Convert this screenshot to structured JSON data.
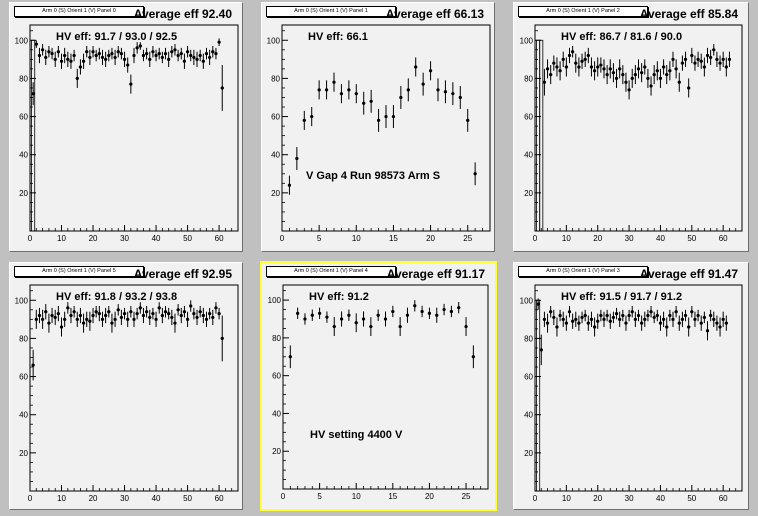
{
  "panels": [
    {
      "title": "Arm 0 (S) Orient 1 (V) Panel 0",
      "average_label": "Average eff 92.40",
      "hv_eff_label": "HV eff:   91.7 / 93.0 / 92.5",
      "annotation": "",
      "selected": false
    },
    {
      "title": "Arm 0 (S) Orient 1 (V) Panel 1",
      "average_label": "Average eff 66.13",
      "hv_eff_label": "HV eff:   66.1",
      "annotation": "V Gap 4 Run 98573 Arm S",
      "selected": false
    },
    {
      "title": "Arm 0 (S) Orient 1 (V) Panel 2",
      "average_label": "Average eff 85.84",
      "hv_eff_label": "HV eff:   86.7 / 81.6 / 90.0",
      "annotation": "",
      "selected": false
    },
    {
      "title": "Arm 0 (S) Orient 1 (V) Panel 5",
      "average_label": "Average eff 92.95",
      "hv_eff_label": "HV eff:   91.8 / 93.2 / 93.8",
      "annotation": "",
      "selected": false
    },
    {
      "title": "Arm 0 (S) Orient 1 (V) Panel 4",
      "average_label": "Average eff 91.17",
      "hv_eff_label": "HV eff:   91.2",
      "annotation": "HV setting 4400 V",
      "selected": true
    },
    {
      "title": "Arm 0 (S) Orient 1 (V) Panel 3",
      "average_label": "Average eff 91.47",
      "hv_eff_label": "HV eff:   91.5 / 91.7 / 91.2",
      "annotation": "",
      "selected": false
    }
  ],
  "chart_data": [
    {
      "type": "scatter",
      "title": "Arm 0 (S) Orient 1 (V) Panel 0",
      "xlim": [
        0,
        66
      ],
      "ylim": [
        0,
        108
      ],
      "xticks": [
        0,
        10,
        20,
        30,
        40,
        50,
        60
      ],
      "yticks": [
        20,
        40,
        60,
        80,
        100
      ],
      "x": [
        1,
        2,
        3,
        4,
        5,
        6,
        7,
        8,
        9,
        10,
        11,
        12,
        13,
        14,
        15,
        16,
        17,
        18,
        19,
        20,
        21,
        22,
        23,
        24,
        25,
        26,
        27,
        28,
        29,
        30,
        31,
        32,
        33,
        34,
        35,
        36,
        37,
        38,
        39,
        40,
        41,
        42,
        43,
        44,
        45,
        46,
        47,
        48,
        49,
        50,
        51,
        52,
        53,
        54,
        55,
        56,
        57,
        58,
        59,
        60,
        61,
        62
      ],
      "y": [
        72,
        98,
        92,
        95,
        91,
        94,
        93,
        90,
        94,
        89,
        92,
        90,
        89,
        92,
        80,
        86,
        89,
        94,
        91,
        94,
        92,
        93,
        91,
        90,
        92,
        93,
        91,
        94,
        93,
        90,
        87,
        77,
        92,
        96,
        97,
        92,
        93,
        90,
        94,
        92,
        93,
        91,
        93,
        90,
        94,
        95,
        92,
        93,
        89,
        94,
        92,
        91,
        90,
        92,
        89,
        93,
        91,
        94,
        93,
        99,
        75,
        0
      ],
      "err": [
        6,
        2,
        4,
        3,
        4,
        3,
        3,
        4,
        3,
        4,
        4,
        4,
        4,
        3,
        5,
        4,
        4,
        3,
        4,
        3,
        3,
        3,
        4,
        4,
        3,
        3,
        4,
        3,
        3,
        4,
        4,
        5,
        4,
        3,
        2,
        3,
        3,
        4,
        3,
        3,
        3,
        3,
        3,
        4,
        3,
        3,
        3,
        3,
        4,
        3,
        3,
        4,
        4,
        3,
        4,
        3,
        4,
        3,
        3,
        2,
        12,
        0
      ],
      "edge_bars": [
        1
      ]
    },
    {
      "type": "scatter",
      "title": "Arm 0 (S) Orient 1 (V) Panel 1",
      "xlim": [
        0,
        28
      ],
      "ylim": [
        0,
        108
      ],
      "xticks": [
        0,
        5,
        10,
        15,
        20,
        25
      ],
      "yticks": [
        20,
        40,
        60,
        80,
        100
      ],
      "x": [
        1,
        2,
        3,
        4,
        5,
        6,
        7,
        8,
        9,
        10,
        11,
        12,
        13,
        14,
        15,
        16,
        17,
        18,
        19,
        20,
        21,
        22,
        23,
        24,
        25,
        26
      ],
      "y": [
        24,
        38,
        58,
        60,
        74,
        74,
        78,
        72,
        74,
        72,
        67,
        68,
        58,
        60,
        60,
        70,
        74,
        86,
        77,
        84,
        74,
        73,
        72,
        70,
        58,
        30
      ],
      "err": [
        5,
        6,
        5,
        5,
        5,
        5,
        5,
        5,
        5,
        5,
        6,
        6,
        6,
        6,
        6,
        6,
        6,
        5,
        6,
        5,
        6,
        6,
        6,
        6,
        6,
        6
      ],
      "edge_bars": []
    },
    {
      "type": "scatter",
      "title": "Arm 0 (S) Orient 1 (V) Panel 2",
      "xlim": [
        0,
        66
      ],
      "ylim": [
        0,
        108
      ],
      "xticks": [
        0,
        10,
        20,
        30,
        40,
        50,
        60
      ],
      "yticks": [
        20,
        40,
        60,
        80,
        100
      ],
      "x": [
        3,
        4,
        5,
        6,
        7,
        8,
        9,
        10,
        11,
        12,
        13,
        14,
        15,
        16,
        17,
        18,
        19,
        20,
        21,
        22,
        23,
        24,
        25,
        26,
        27,
        28,
        29,
        30,
        31,
        32,
        33,
        34,
        35,
        36,
        37,
        38,
        39,
        40,
        41,
        42,
        43,
        44,
        45,
        46,
        47,
        48,
        49,
        50,
        51,
        52,
        53,
        54,
        55,
        56,
        57,
        58,
        59,
        60,
        61,
        62
      ],
      "y": [
        78,
        85,
        82,
        88,
        86,
        84,
        90,
        86,
        92,
        94,
        88,
        86,
        89,
        90,
        92,
        86,
        84,
        86,
        87,
        85,
        82,
        85,
        83,
        80,
        85,
        82,
        78,
        74,
        80,
        82,
        85,
        83,
        86,
        80,
        76,
        82,
        84,
        80,
        86,
        82,
        84,
        90,
        85,
        78,
        88,
        90,
        75,
        92,
        88,
        90,
        89,
        86,
        92,
        91,
        95,
        90,
        88,
        90,
        86,
        90
      ],
      "err": [
        7,
        5,
        5,
        4,
        5,
        5,
        4,
        5,
        4,
        3,
        5,
        5,
        4,
        4,
        4,
        5,
        5,
        5,
        4,
        5,
        5,
        5,
        5,
        5,
        5,
        5,
        5,
        5,
        5,
        5,
        5,
        5,
        4,
        5,
        5,
        5,
        5,
        5,
        4,
        5,
        5,
        4,
        5,
        5,
        4,
        4,
        5,
        4,
        4,
        4,
        4,
        5,
        4,
        4,
        3,
        4,
        4,
        4,
        5,
        4
      ],
      "edge_bars": [
        1,
        2
      ]
    },
    {
      "type": "scatter",
      "title": "Arm 0 (S) Orient 1 (V) Panel 5",
      "xlim": [
        0,
        66
      ],
      "ylim": [
        0,
        108
      ],
      "xticks": [
        0,
        10,
        20,
        30,
        40,
        50,
        60
      ],
      "yticks": [
        20,
        40,
        60,
        80,
        100
      ],
      "x": [
        1,
        2,
        3,
        4,
        5,
        6,
        7,
        8,
        9,
        10,
        11,
        12,
        13,
        14,
        15,
        16,
        17,
        18,
        19,
        20,
        21,
        22,
        23,
        24,
        25,
        26,
        27,
        28,
        29,
        30,
        31,
        32,
        33,
        34,
        35,
        36,
        37,
        38,
        39,
        40,
        41,
        42,
        43,
        44,
        45,
        46,
        47,
        48,
        49,
        50,
        51,
        52,
        53,
        54,
        55,
        56,
        57,
        58,
        59,
        60,
        61,
        62
      ],
      "y": [
        66,
        90,
        92,
        90,
        94,
        88,
        92,
        91,
        93,
        86,
        90,
        96,
        92,
        94,
        90,
        92,
        88,
        90,
        89,
        92,
        94,
        93,
        90,
        92,
        94,
        88,
        90,
        95,
        91,
        93,
        90,
        94,
        90,
        93,
        96,
        92,
        94,
        91,
        93,
        90,
        96,
        92,
        94,
        93,
        91,
        88,
        95,
        92,
        94,
        90,
        97,
        93,
        91,
        94,
        92,
        90,
        93,
        91,
        96,
        93,
        80,
        0
      ],
      "err": [
        8,
        5,
        4,
        5,
        4,
        5,
        4,
        4,
        4,
        5,
        4,
        3,
        4,
        3,
        4,
        4,
        5,
        4,
        5,
        4,
        3,
        4,
        4,
        4,
        3,
        5,
        4,
        3,
        4,
        3,
        4,
        3,
        4,
        3,
        3,
        4,
        3,
        4,
        3,
        4,
        3,
        4,
        3,
        3,
        4,
        5,
        3,
        4,
        3,
        4,
        3,
        3,
        4,
        3,
        4,
        4,
        3,
        4,
        3,
        3,
        12,
        0
      ],
      "edge_bars": []
    },
    {
      "type": "scatter",
      "title": "Arm 0 (S) Orient 1 (V) Panel 4",
      "xlim": [
        0,
        28
      ],
      "ylim": [
        0,
        108
      ],
      "xticks": [
        0,
        5,
        10,
        15,
        20,
        25
      ],
      "yticks": [
        20,
        40,
        60,
        80,
        100
      ],
      "x": [
        1,
        2,
        3,
        4,
        5,
        6,
        7,
        8,
        9,
        10,
        11,
        12,
        13,
        14,
        15,
        16,
        17,
        18,
        19,
        20,
        21,
        22,
        23,
        24,
        25,
        26
      ],
      "y": [
        70,
        93,
        90,
        92,
        93,
        91,
        86,
        90,
        92,
        88,
        90,
        86,
        92,
        90,
        94,
        86,
        92,
        97,
        94,
        93,
        92,
        95,
        94,
        96,
        86,
        70
      ],
      "err": [
        6,
        3,
        3,
        3,
        3,
        3,
        5,
        4,
        3,
        5,
        4,
        5,
        3,
        4,
        3,
        5,
        4,
        3,
        3,
        3,
        4,
        3,
        3,
        3,
        5,
        6
      ],
      "edge_bars": []
    },
    {
      "type": "scatter",
      "title": "Arm 0 (S) Orient 1 (V) Panel 3",
      "xlim": [
        0,
        66
      ],
      "ylim": [
        0,
        108
      ],
      "xticks": [
        0,
        10,
        20,
        30,
        40,
        50,
        60
      ],
      "yticks": [
        20,
        40,
        60,
        80,
        100
      ],
      "x": [
        1,
        2,
        3,
        4,
        5,
        6,
        7,
        8,
        9,
        10,
        11,
        12,
        13,
        14,
        15,
        16,
        17,
        18,
        19,
        20,
        21,
        22,
        23,
        24,
        25,
        26,
        27,
        28,
        29,
        30,
        31,
        32,
        33,
        34,
        35,
        36,
        37,
        38,
        39,
        40,
        41,
        42,
        43,
        44,
        45,
        46,
        47,
        48,
        49,
        50,
        51,
        52,
        53,
        54,
        55,
        56,
        57,
        58,
        59,
        60,
        61,
        62
      ],
      "y": [
        98,
        74,
        90,
        88,
        94,
        91,
        86,
        92,
        90,
        88,
        94,
        89,
        90,
        88,
        91,
        92,
        88,
        90,
        86,
        89,
        92,
        90,
        92,
        89,
        91,
        93,
        90,
        92,
        88,
        92,
        94,
        90,
        92,
        88,
        90,
        92,
        94,
        91,
        92,
        88,
        90,
        86,
        92,
        90,
        94,
        88,
        90,
        92,
        86,
        94,
        90,
        92,
        88,
        91,
        84,
        92,
        90,
        88,
        86,
        90,
        88,
        0
      ],
      "err": [
        3,
        8,
        4,
        5,
        3,
        4,
        5,
        3,
        4,
        4,
        3,
        4,
        4,
        4,
        3,
        3,
        4,
        4,
        5,
        4,
        3,
        4,
        3,
        4,
        3,
        3,
        4,
        3,
        4,
        3,
        3,
        4,
        3,
        4,
        4,
        3,
        3,
        3,
        3,
        4,
        4,
        5,
        3,
        4,
        3,
        4,
        4,
        3,
        5,
        3,
        4,
        3,
        4,
        3,
        5,
        3,
        4,
        4,
        5,
        4,
        4,
        0
      ],
      "edge_bars": [
        1
      ]
    }
  ]
}
